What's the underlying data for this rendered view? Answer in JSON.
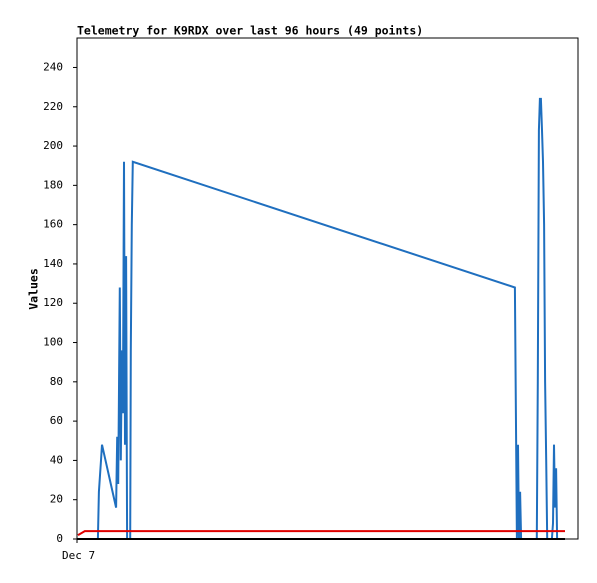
{
  "chart_data": {
    "type": "line",
    "title": "Telemetry for K9RDX over last 96 hours (49 points)",
    "ylabel": "Values",
    "xlim": [
      0,
      96
    ],
    "xticks": [
      {
        "value": 0,
        "label": "Dec 7"
      }
    ],
    "ylim": [
      0,
      255
    ],
    "yticks": [
      0,
      20,
      40,
      60,
      80,
      100,
      120,
      140,
      160,
      180,
      200,
      220,
      240
    ],
    "grid": false,
    "series": [
      {
        "color": "#1f6fbf",
        "x": [
          4.0,
          4.2,
          4.6,
          4.8,
          7.5,
          7.7,
          7.9,
          8.0,
          8.2,
          8.4,
          8.6,
          8.8,
          9.0,
          9.2,
          9.4,
          9.6,
          10.2,
          10.3,
          10.5,
          10.7,
          83.9,
          84.1,
          84.3,
          84.5,
          84.7,
          84.9,
          85.1,
          86.5,
          87.5,
          88.1,
          88.3,
          88.5,
          88.7,
          88.9,
          89.1,
          89.3,
          89.5,
          89.7,
          89.9,
          90.1,
          90.4,
          90.8,
          91.0,
          91.2,
          91.4,
          91.6,
          91.8,
          92.0,
          92.4
        ],
        "values": [
          0,
          24,
          40,
          48,
          16,
          52,
          28,
          64,
          128,
          40,
          96,
          64,
          192,
          48,
          144,
          0,
          0,
          96,
          160,
          192,
          128,
          64,
          0,
          48,
          0,
          24,
          0,
          0,
          0,
          0,
          80,
          208,
          224,
          224,
          208,
          192,
          160,
          80,
          40,
          0,
          0,
          0,
          0,
          8,
          48,
          16,
          36,
          0,
          0
        ]
      },
      {
        "color": "#e00000",
        "x": [
          0.2,
          1.5,
          93.5
        ],
        "values": [
          2,
          4,
          4
        ]
      },
      {
        "color": "#000000",
        "x": [
          0,
          93.5
        ],
        "values": [
          0,
          0
        ]
      }
    ]
  }
}
